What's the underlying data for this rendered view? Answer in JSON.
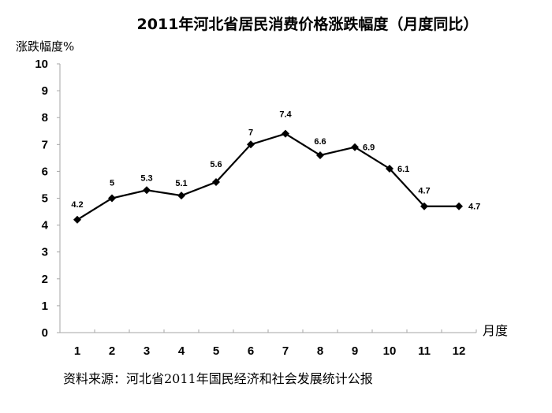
{
  "chart_data": {
    "type": "line",
    "title": "2011年河北省居民消费价格涨跌幅度（月度同比）",
    "xlabel": "月度",
    "ylabel": "涨跌幅度%",
    "categories": [
      "1",
      "2",
      "3",
      "4",
      "5",
      "6",
      "7",
      "8",
      "9",
      "10",
      "11",
      "12"
    ],
    "values": [
      4.2,
      5,
      5.3,
      5.1,
      5.6,
      7,
      7.4,
      6.6,
      6.9,
      6.1,
      4.7,
      4.7
    ],
    "data_labels": [
      "4.2",
      "5",
      "5.3",
      "5.1",
      "5.6",
      "7",
      "7.4",
      "6.6",
      "6.9",
      "6.1",
      "4.7",
      "4.7"
    ],
    "yticks": [
      "0",
      "1",
      "2",
      "3",
      "4",
      "5",
      "6",
      "7",
      "8",
      "9",
      "10"
    ],
    "ylim": [
      0,
      10
    ],
    "grid": false,
    "legend": null,
    "marker": "diamond",
    "line_color": "#000000",
    "axis_color": "#a6a6a6",
    "source": "资料来源：河北省2011年国民经济和社会发展统计公报"
  }
}
